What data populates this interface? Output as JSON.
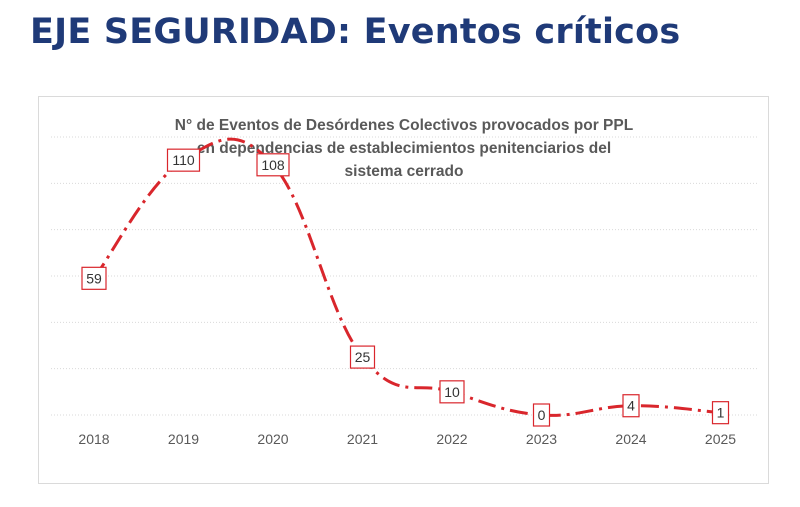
{
  "page": {
    "title": "EJE SEGURIDAD: Eventos críticos"
  },
  "colors": {
    "title": "#1f3a78",
    "series": "#d9262c",
    "label_border": "#d9262c",
    "text": "#595959"
  },
  "chart_data": {
    "type": "line",
    "title": [
      "N° de Eventos de Desórdenes Colectivos provocados por PPL",
      "en dependencias de establecimientos penitenciarios del",
      "sistema cerrado"
    ],
    "categories": [
      "2018",
      "2019",
      "2020",
      "2021",
      "2022",
      "2023",
      "2024",
      "2025"
    ],
    "series": [
      {
        "values": [
          59,
          110,
          108,
          25,
          10,
          0,
          4,
          1
        ],
        "labels": [
          "59",
          "110",
          "108",
          "25",
          "10",
          "0",
          "4",
          "1"
        ],
        "style": "dash-dot",
        "smooth": true
      }
    ],
    "ylim": [
      0,
      120
    ],
    "grid": true,
    "legend": "none",
    "xlabel": "",
    "ylabel": ""
  }
}
